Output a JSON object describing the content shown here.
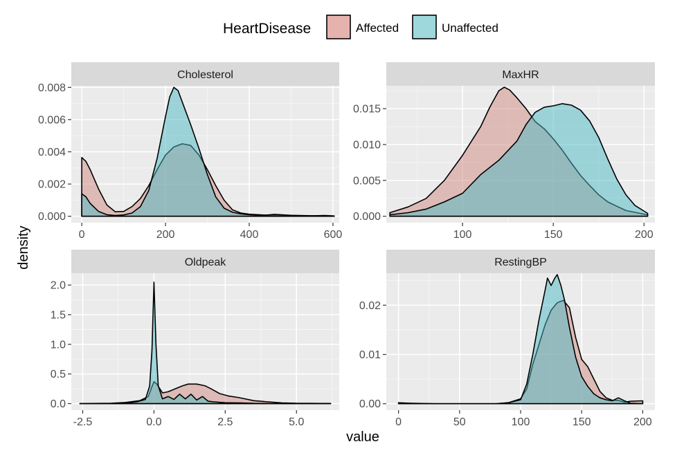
{
  "chart_data": {
    "type": "area",
    "xlabel": "value",
    "ylabel": "density",
    "legend": {
      "title": "HeartDisease",
      "position": "top",
      "entries": [
        {
          "name": "Affected",
          "color": "#E6B2AD"
        },
        {
          "name": "Unaffected",
          "color": "#9ED8DC"
        }
      ]
    },
    "grid": true,
    "panels": [
      {
        "title": "Cholesterol",
        "xlim": [
          -25,
          615
        ],
        "ylim": [
          -0.0004,
          0.0081
        ],
        "xticks": [
          0,
          200,
          400,
          600
        ],
        "xtick_labels": [
          "0",
          "200",
          "400",
          "600"
        ],
        "yticks": [
          0.0,
          0.002,
          0.004,
          0.006,
          0.008
        ],
        "ytick_labels": [
          "0.000",
          "0.002",
          "0.004",
          "0.006",
          "0.008"
        ],
        "series": [
          {
            "name": "Affected",
            "points": [
              [
                0,
                0.00365
              ],
              [
                10,
                0.0034
              ],
              [
                20,
                0.0029
              ],
              [
                40,
                0.0017
              ],
              [
                60,
                0.0007
              ],
              [
                80,
                0.00028
              ],
              [
                100,
                0.0003
              ],
              [
                120,
                0.0006
              ],
              [
                140,
                0.0011
              ],
              [
                160,
                0.0019
              ],
              [
                180,
                0.0029
              ],
              [
                200,
                0.0038
              ],
              [
                220,
                0.0043
              ],
              [
                240,
                0.0045
              ],
              [
                260,
                0.0044
              ],
              [
                280,
                0.0038
              ],
              [
                300,
                0.0029
              ],
              [
                320,
                0.0019
              ],
              [
                340,
                0.001
              ],
              [
                360,
                0.0004
              ],
              [
                380,
                0.0002
              ],
              [
                400,
                0.00013
              ],
              [
                450,
                6e-05
              ],
              [
                500,
                3e-05
              ],
              [
                540,
                2e-05
              ],
              [
                580,
                5e-05
              ],
              [
                603,
                2e-05
              ]
            ]
          },
          {
            "name": "Unaffected",
            "points": [
              [
                0,
                0.0014
              ],
              [
                10,
                0.0012
              ],
              [
                20,
                0.0008
              ],
              [
                40,
                0.0003
              ],
              [
                60,
                0.0001
              ],
              [
                80,
                5e-05
              ],
              [
                100,
                8e-05
              ],
              [
                120,
                0.0002
              ],
              [
                140,
                0.0006
              ],
              [
                160,
                0.0016
              ],
              [
                180,
                0.0036
              ],
              [
                200,
                0.0062
              ],
              [
                210,
                0.0074
              ],
              [
                220,
                0.008
              ],
              [
                230,
                0.0078
              ],
              [
                240,
                0.0071
              ],
              [
                260,
                0.0057
              ],
              [
                280,
                0.0042
              ],
              [
                300,
                0.0026
              ],
              [
                320,
                0.0012
              ],
              [
                340,
                0.0005
              ],
              [
                360,
                0.00025
              ],
              [
                380,
                0.00015
              ],
              [
                400,
                0.0001
              ],
              [
                430,
                5e-05
              ],
              [
                460,
                0.00012
              ],
              [
                500,
                6e-05
              ],
              [
                560,
                3e-05
              ],
              [
                603,
                1e-05
              ]
            ]
          }
        ]
      },
      {
        "title": "MaxHR",
        "xlim": [
          58,
          206
        ],
        "ylim": [
          -0.0009,
          0.0182
        ],
        "xticks": [
          100,
          150,
          200
        ],
        "xtick_labels": [
          "100",
          "150",
          "200"
        ],
        "yticks": [
          0.0,
          0.005,
          0.01,
          0.015
        ],
        "ytick_labels": [
          "0.000",
          "0.005",
          "0.010",
          "0.015"
        ],
        "series": [
          {
            "name": "Affected",
            "points": [
              [
                60,
                0.0005
              ],
              [
                70,
                0.0013
              ],
              [
                80,
                0.0025
              ],
              [
                90,
                0.005
              ],
              [
                100,
                0.0085
              ],
              [
                110,
                0.0125
              ],
              [
                115,
                0.0152
              ],
              [
                120,
                0.0175
              ],
              [
                123,
                0.018
              ],
              [
                126,
                0.0176
              ],
              [
                130,
                0.0165
              ],
              [
                135,
                0.015
              ],
              [
                140,
                0.0132
              ],
              [
                145,
                0.0122
              ],
              [
                150,
                0.0108
              ],
              [
                155,
                0.0092
              ],
              [
                160,
                0.0074
              ],
              [
                165,
                0.0057
              ],
              [
                170,
                0.0043
              ],
              [
                175,
                0.003
              ],
              [
                180,
                0.002
              ],
              [
                190,
                0.0008
              ],
              [
                202,
                0.0002
              ]
            ]
          },
          {
            "name": "Unaffected",
            "points": [
              [
                60,
                0.0002
              ],
              [
                70,
                0.0005
              ],
              [
                80,
                0.001
              ],
              [
                90,
                0.002
              ],
              [
                100,
                0.0032
              ],
              [
                110,
                0.0058
              ],
              [
                120,
                0.0078
              ],
              [
                130,
                0.0105
              ],
              [
                135,
                0.0128
              ],
              [
                140,
                0.0145
              ],
              [
                145,
                0.0152
              ],
              [
                150,
                0.0154
              ],
              [
                155,
                0.0157
              ],
              [
                160,
                0.0155
              ],
              [
                165,
                0.0148
              ],
              [
                170,
                0.0133
              ],
              [
                175,
                0.011
              ],
              [
                180,
                0.008
              ],
              [
                185,
                0.0052
              ],
              [
                190,
                0.003
              ],
              [
                195,
                0.0015
              ],
              [
                202,
                0.0004
              ]
            ]
          }
        ]
      },
      {
        "title": "Oldpeak",
        "xlim": [
          -2.9,
          6.5
        ],
        "ylim": [
          -0.11,
          2.2
        ],
        "xticks": [
          -2.5,
          0.0,
          2.5,
          5.0
        ],
        "xtick_labels": [
          "-2.5",
          "0.0",
          "2.5",
          "5.0"
        ],
        "yticks": [
          0.0,
          0.5,
          1.0,
          1.5,
          2.0
        ],
        "ytick_labels": [
          "0.0",
          "0.5",
          "1.0",
          "1.5",
          "2.0"
        ],
        "series": [
          {
            "name": "Affected",
            "points": [
              [
                -2.6,
                0.0
              ],
              [
                -1.5,
                0.005
              ],
              [
                -1.0,
                0.02
              ],
              [
                -0.5,
                0.05
              ],
              [
                -0.2,
                0.12
              ],
              [
                -0.1,
                0.25
              ],
              [
                0.0,
                0.37
              ],
              [
                0.1,
                0.33
              ],
              [
                0.3,
                0.18
              ],
              [
                0.5,
                0.2
              ],
              [
                0.8,
                0.26
              ],
              [
                1.0,
                0.3
              ],
              [
                1.2,
                0.33
              ],
              [
                1.5,
                0.33
              ],
              [
                1.8,
                0.3
              ],
              [
                2.0,
                0.25
              ],
              [
                2.3,
                0.17
              ],
              [
                2.6,
                0.13
              ],
              [
                3.0,
                0.1
              ],
              [
                3.5,
                0.05
              ],
              [
                4.0,
                0.03
              ],
              [
                4.5,
                0.012
              ],
              [
                5.0,
                0.006
              ],
              [
                5.5,
                0.004
              ],
              [
                6.2,
                0.002
              ]
            ]
          },
          {
            "name": "Unaffected",
            "points": [
              [
                -2.6,
                0.0
              ],
              [
                -1.5,
                0.003
              ],
              [
                -1.0,
                0.01
              ],
              [
                -0.6,
                0.03
              ],
              [
                -0.3,
                0.07
              ],
              [
                -0.15,
                0.3
              ],
              [
                -0.07,
                0.9
              ],
              [
                0.0,
                2.05
              ],
              [
                0.07,
                1.0
              ],
              [
                0.15,
                0.3
              ],
              [
                0.3,
                0.08
              ],
              [
                0.5,
                0.12
              ],
              [
                0.7,
                0.07
              ],
              [
                0.9,
                0.16
              ],
              [
                1.1,
                0.08
              ],
              [
                1.3,
                0.16
              ],
              [
                1.5,
                0.06
              ],
              [
                1.7,
                0.12
              ],
              [
                1.9,
                0.04
              ],
              [
                2.1,
                0.03
              ],
              [
                2.5,
                0.015
              ],
              [
                3.0,
                0.012
              ],
              [
                3.5,
                0.004
              ],
              [
                4.0,
                0.002
              ],
              [
                6.2,
                0.0
              ]
            ]
          }
        ]
      },
      {
        "title": "RestingBP",
        "xlim": [
          -10,
          210
        ],
        "ylim": [
          -0.0013,
          0.0265
        ],
        "xticks": [
          0,
          50,
          100,
          150,
          200
        ],
        "xtick_labels": [
          "0",
          "50",
          "100",
          "150",
          "200"
        ],
        "yticks": [
          0.0,
          0.01,
          0.02
        ],
        "ytick_labels": [
          "0.00",
          "0.01",
          "0.02"
        ],
        "series": [
          {
            "name": "Affected",
            "points": [
              [
                0,
                0.0002
              ],
              [
                10,
                0.0001
              ],
              [
                30,
                0.0
              ],
              [
                60,
                0.0
              ],
              [
                80,
                0.0
              ],
              [
                90,
                0.0002
              ],
              [
                100,
                0.001
              ],
              [
                105,
                0.003
              ],
              [
                110,
                0.008
              ],
              [
                115,
                0.012
              ],
              [
                120,
                0.016
              ],
              [
                125,
                0.019
              ],
              [
                130,
                0.0205
              ],
              [
                135,
                0.021
              ],
              [
                140,
                0.0195
              ],
              [
                145,
                0.0135
              ],
              [
                150,
                0.009
              ],
              [
                155,
                0.0075
              ],
              [
                160,
                0.005
              ],
              [
                165,
                0.0025
              ],
              [
                170,
                0.0012
              ],
              [
                175,
                0.0007
              ],
              [
                180,
                0.0007
              ],
              [
                185,
                0.0003
              ],
              [
                190,
                0.0005
              ],
              [
                200,
                0.0006
              ]
            ]
          },
          {
            "name": "Unaffected",
            "points": [
              [
                0,
                0.0
              ],
              [
                50,
                0.0
              ],
              [
                80,
                0.0
              ],
              [
                90,
                0.0002
              ],
              [
                100,
                0.0008
              ],
              [
                105,
                0.004
              ],
              [
                110,
                0.01
              ],
              [
                115,
                0.017
              ],
              [
                120,
                0.023
              ],
              [
                122,
                0.0255
              ],
              [
                125,
                0.024
              ],
              [
                128,
                0.0255
              ],
              [
                130,
                0.0262
              ],
              [
                133,
                0.024
              ],
              [
                136,
                0.021
              ],
              [
                140,
                0.0155
              ],
              [
                145,
                0.0095
              ],
              [
                150,
                0.0055
              ],
              [
                155,
                0.0035
              ],
              [
                160,
                0.002
              ],
              [
                165,
                0.0012
              ],
              [
                170,
                0.0008
              ],
              [
                175,
                0.0006
              ],
              [
                180,
                0.0012
              ],
              [
                185,
                0.0006
              ],
              [
                190,
                0.0001
              ],
              [
                200,
                0.0
              ]
            ]
          }
        ]
      }
    ]
  }
}
